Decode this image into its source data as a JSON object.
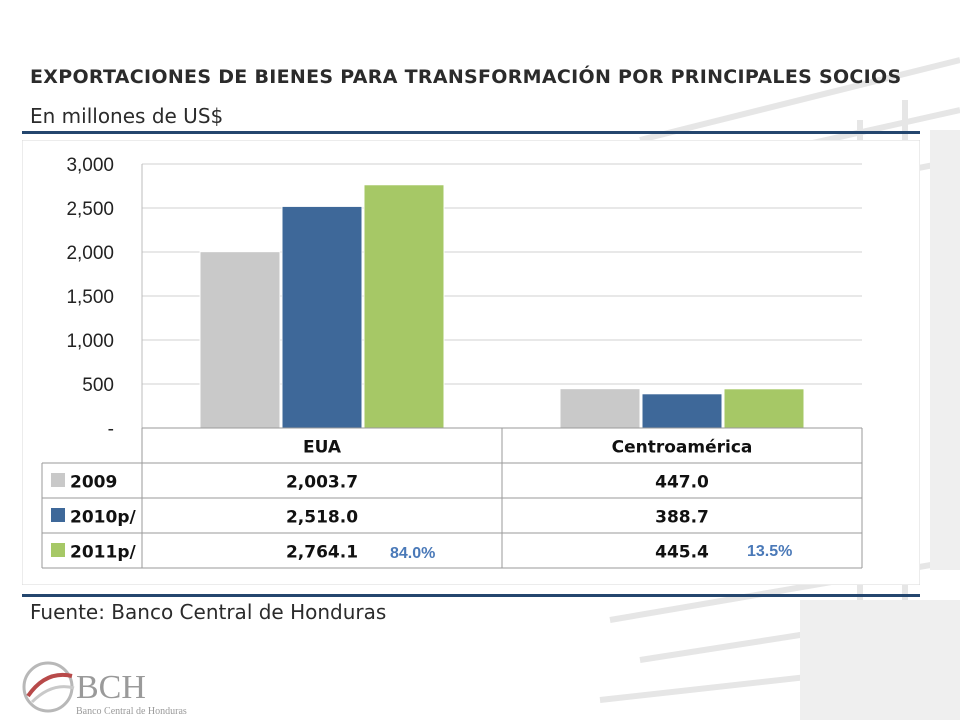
{
  "title": "EXPORTACIONES DE BIENES PARA TRANSFORMACIÓN POR PRINCIPALES SOCIOS",
  "subtitle": "En millones de US$",
  "source": "Fuente: Banco Central de Honduras",
  "logo": {
    "text": "BCH",
    "caption": "Banco Central de Honduras"
  },
  "chart_data": {
    "type": "bar",
    "categories": [
      "EUA",
      "Centroamérica"
    ],
    "series": [
      {
        "name": "2009",
        "values": [
          2003.7,
          447.0
        ],
        "labels": [
          "2,003.7",
          "447.0"
        ],
        "color": "#c9c9c9"
      },
      {
        "name": "2010p/",
        "values": [
          2518.0,
          388.7
        ],
        "labels": [
          "2,518.0",
          "388.7"
        ],
        "color": "#3e6899"
      },
      {
        "name": "2011p/",
        "values": [
          2764.1,
          445.4
        ],
        "labels": [
          "2,764.1",
          "445.4"
        ],
        "color": "#a6c866"
      }
    ],
    "ylim": [
      0,
      3000
    ],
    "yticks": [
      0,
      500,
      1000,
      1500,
      2000,
      2500,
      3000
    ],
    "ytick_labels": [
      "-",
      "500",
      "1,000",
      "1,500",
      "2,000",
      "2,500",
      "3,000"
    ],
    "grid": true,
    "legend": "data-table",
    "annotations": [
      "84.0%",
      "13.5%"
    ]
  }
}
